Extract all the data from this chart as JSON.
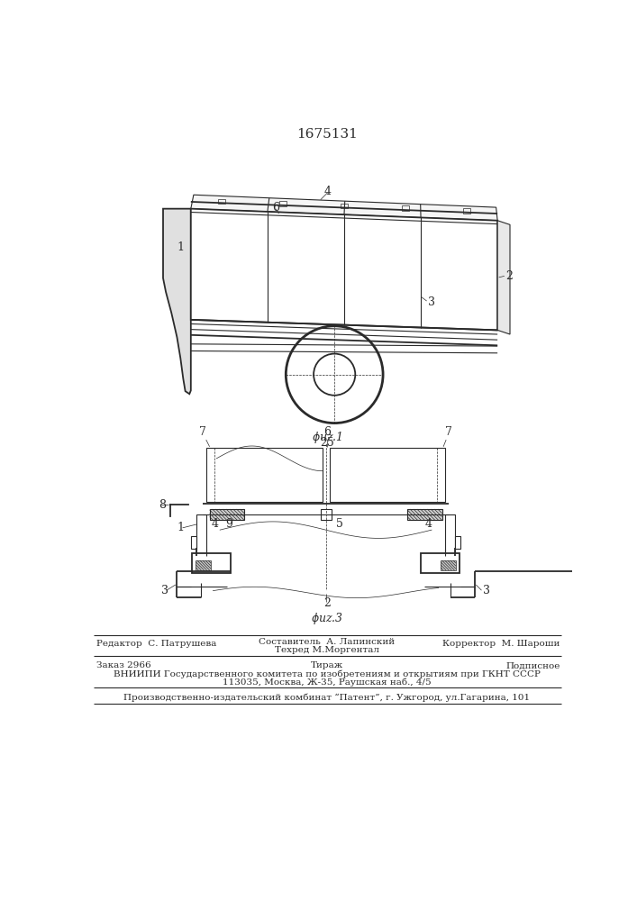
{
  "patent_number": "1675131",
  "bg_color": "#ffffff",
  "line_color": "#2a2a2a",
  "footer": {
    "line1_left": "Редактор  С. Патрушева",
    "line1_center_top": "Составитель  А. Лапинский",
    "line1_center_bot": "Техред М.Моргентал",
    "line1_right": "Корректор  М. Шароши",
    "line2_left": "Заказ 2966",
    "line2_center": "Тираж",
    "line2_right": "Подписное",
    "line3": "ВНИИПИ Государственного комитета по изобретениям и открытиям при ГКНТ СССР",
    "line4": "113035, Москва, Ж-35, Раушская наб., 4/5",
    "line5": "Производственно-издательский комбинат “Патент”, г. Ужгород, ул.Гагарина, 101"
  }
}
